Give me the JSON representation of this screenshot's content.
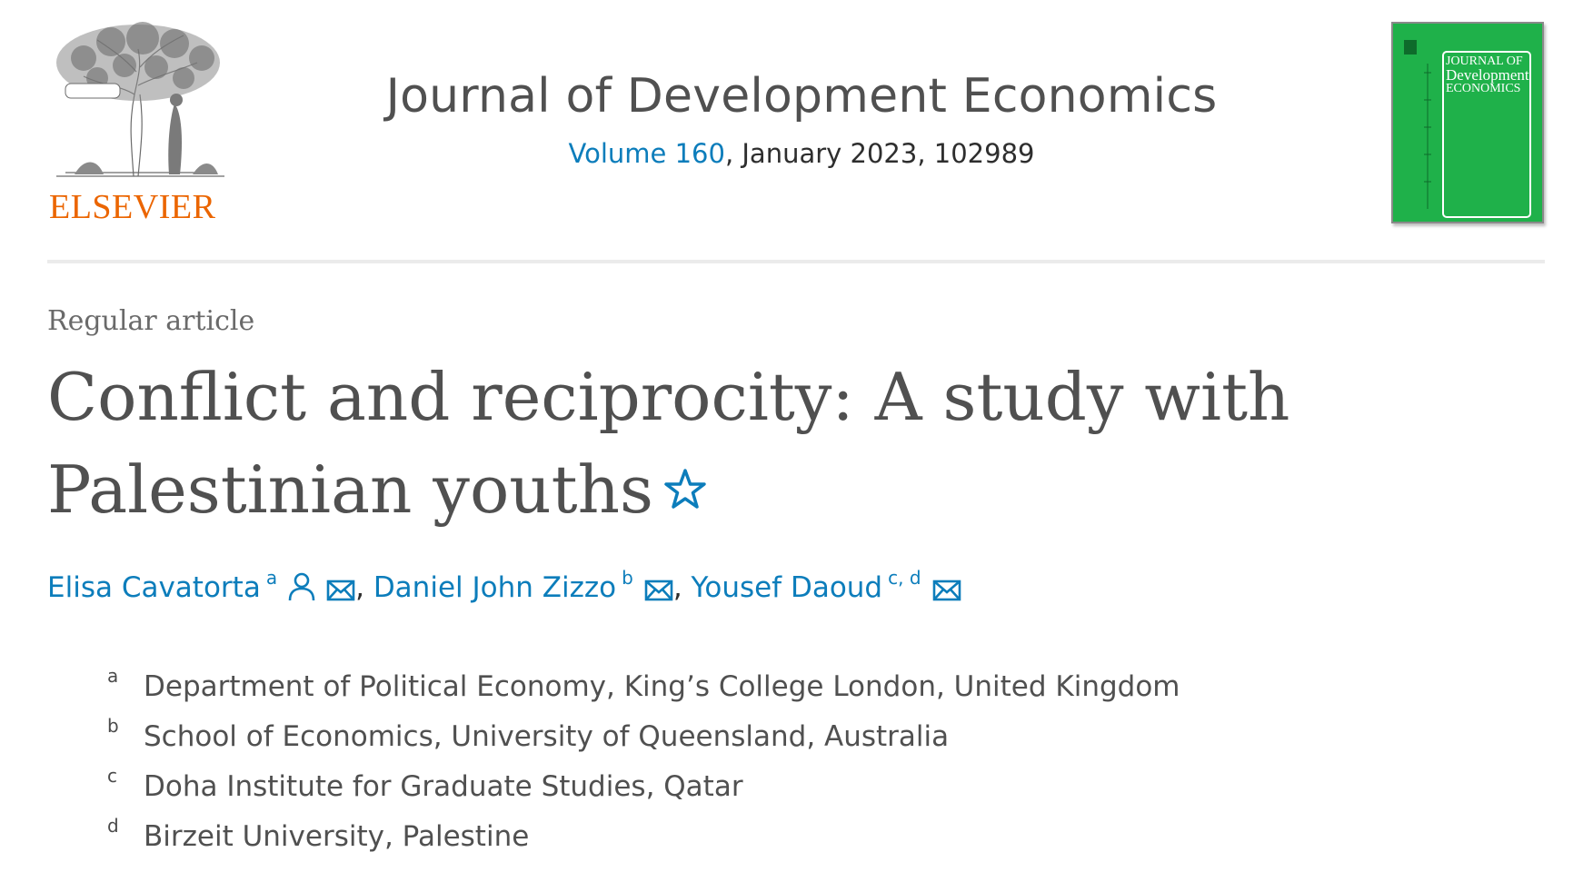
{
  "header": {
    "publisher_name": "ELSEVIER",
    "journal_title": "Journal of Development Economics",
    "volume_link": "Volume 160",
    "issue_info": ", January 2023, 102989",
    "cover": {
      "line1": "JOURNAL OF",
      "line2": "Development",
      "line3": "ECONOMICS"
    }
  },
  "article": {
    "type": "Regular article",
    "title": "Conflict and reciprocity: A study with Palestinian youths"
  },
  "authors": [
    {
      "name": "Elisa Cavatorta",
      "affiliations": "a",
      "separator": ", "
    },
    {
      "name": "Daniel John Zizzo",
      "affiliations": "b",
      "separator": ", "
    },
    {
      "name": "Yousef Daoud",
      "affiliations": "c, d",
      "separator": ""
    }
  ],
  "affiliations": [
    {
      "label": "a",
      "text": "Department of Political Economy, King’s College London, United Kingdom"
    },
    {
      "label": "b",
      "text": "School of Economics, University of Queensland, Australia"
    },
    {
      "label": "c",
      "text": "Doha Institute for Graduate Studies, Qatar"
    },
    {
      "label": "d",
      "text": "Birzeit University, Palestine"
    }
  ],
  "colors": {
    "link": "#0c7dbb",
    "elsevier_orange": "#eb6500",
    "cover_green": "#1fb14a"
  }
}
